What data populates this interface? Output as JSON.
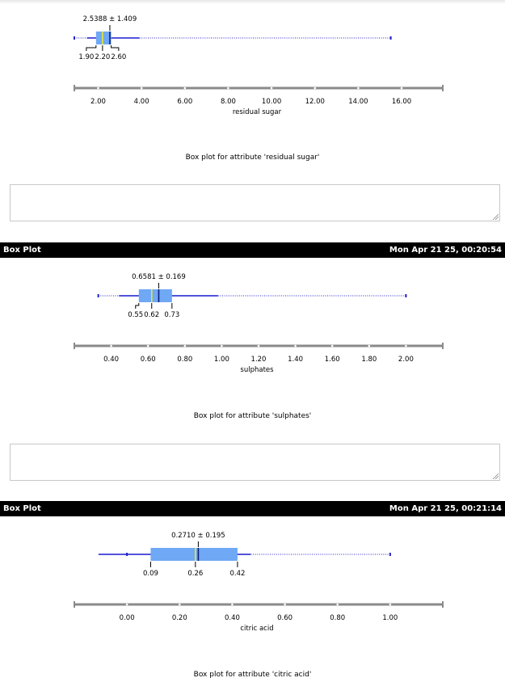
{
  "panels": [
    {
      "header": null,
      "caption": "Box plot for attribute 'residual sugar'"
    },
    {
      "header": {
        "title": "Box Plot",
        "timestamp": "Mon Apr 21 25, 00:20:54"
      },
      "caption": "Box plot for attribute 'sulphates'"
    },
    {
      "header": {
        "title": "Box Plot",
        "timestamp": "Mon Apr 21 25, 00:21:14"
      },
      "caption": "Box plot for attribute 'citric acid'"
    }
  ],
  "chart_data": [
    {
      "type": "box",
      "xlabel": "residual sugar",
      "xlim": [
        0.9,
        17.9
      ],
      "ticks": [
        2,
        4,
        6,
        8,
        10,
        12,
        14,
        16
      ],
      "tick_labels": [
        "2.00",
        "4.00",
        "6.00",
        "8.00",
        "10.00",
        "12.00",
        "14.00",
        "16.00"
      ],
      "min": 0.9,
      "q1": 1.9,
      "median": 2.2,
      "q3": 2.6,
      "whisker_high": 3.9,
      "max": 15.5,
      "mean": 2.5388,
      "std": 1.409,
      "mean_label": "2.5388 ± 1.409",
      "quartile_labels": [
        "1.90",
        "2.20",
        "2.60"
      ]
    },
    {
      "type": "box",
      "xlabel": "sulphates",
      "xlim": [
        0.2,
        2.2
      ],
      "ticks": [
        0.4,
        0.6,
        0.8,
        1.0,
        1.2,
        1.4,
        1.6,
        1.8,
        2.0
      ],
      "tick_labels": [
        "0.40",
        "0.60",
        "0.80",
        "1.00",
        "1.20",
        "1.40",
        "1.60",
        "1.80",
        "2.00"
      ],
      "min": 0.33,
      "q1": 0.55,
      "median": 0.62,
      "q3": 0.73,
      "whisker_high": 0.98,
      "max": 2.0,
      "mean": 0.6581,
      "std": 0.169,
      "mean_label": "0.6581 ± 0.169",
      "quartile_labels": [
        "0.55",
        "0.62",
        "0.73"
      ]
    },
    {
      "type": "box",
      "xlabel": "citric acid",
      "xlim": [
        -0.2,
        1.2
      ],
      "ticks": [
        0.0,
        0.2,
        0.4,
        0.6,
        0.8,
        1.0
      ],
      "tick_labels": [
        "0.00",
        "0.20",
        "0.40",
        "0.60",
        "0.80",
        "1.00"
      ],
      "min": 0.0,
      "q1": 0.09,
      "median": 0.26,
      "q3": 0.42,
      "whisker_high": 0.47,
      "max": 1.0,
      "mean": 0.271,
      "std": 0.195,
      "mean_label": "0.2710 ± 0.195",
      "quartile_labels": [
        "0.09",
        "0.26",
        "0.42"
      ]
    }
  ]
}
